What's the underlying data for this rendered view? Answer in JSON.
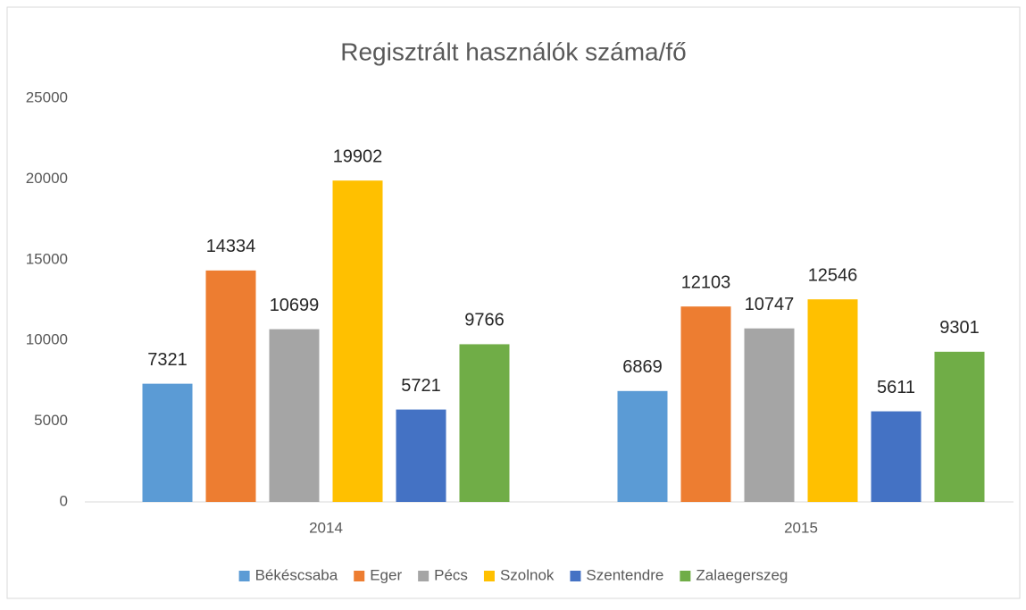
{
  "chart_data": {
    "type": "bar",
    "title": "Regisztrált használók száma/fő",
    "categories": [
      "2014",
      "2015"
    ],
    "series": [
      {
        "name": "Békéscsaba",
        "color": "#5b9bd5",
        "values": [
          7321,
          6869
        ]
      },
      {
        "name": "Eger",
        "color": "#ed7d31",
        "values": [
          14334,
          12103
        ]
      },
      {
        "name": "Pécs",
        "color": "#a5a5a5",
        "values": [
          10699,
          10747
        ]
      },
      {
        "name": "Szolnok",
        "color": "#ffc000",
        "values": [
          19902,
          12546
        ]
      },
      {
        "name": "Szentendre",
        "color": "#4472c4",
        "values": [
          5721,
          5611
        ]
      },
      {
        "name": "Zalaegerszeg",
        "color": "#70ad47",
        "values": [
          9766,
          9301
        ]
      }
    ],
    "ylim": [
      0,
      25000
    ],
    "yticks": [
      0,
      5000,
      10000,
      15000,
      20000,
      25000
    ],
    "grid": false,
    "legend": "bottom"
  }
}
